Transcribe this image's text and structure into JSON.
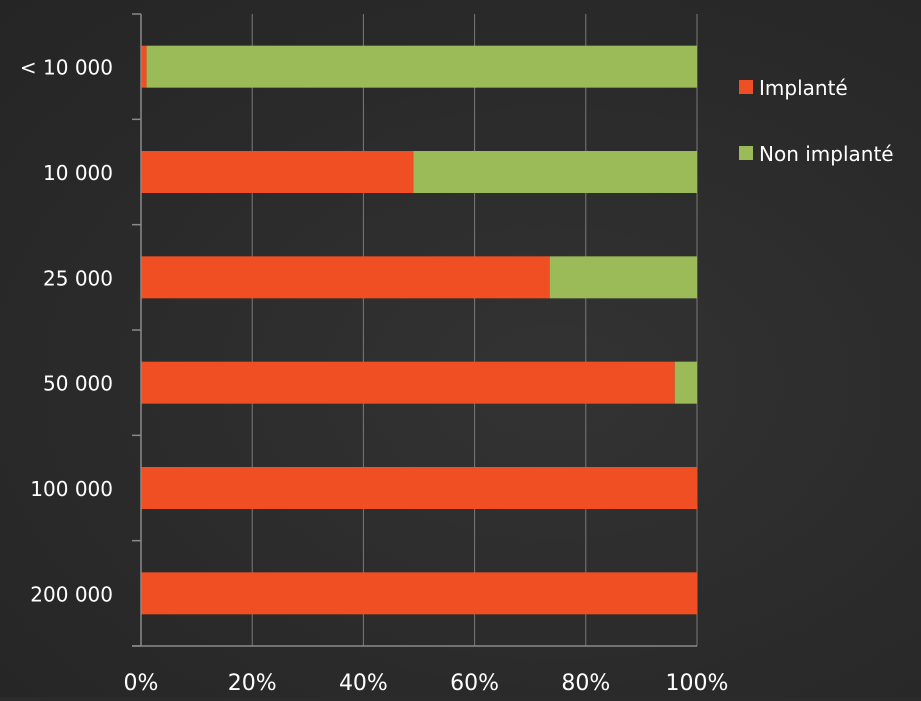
{
  "chart_data": {
    "type": "bar",
    "orientation": "horizontal",
    "stacked": "percent",
    "categories": [
      "< 10 000",
      "10 000",
      "25 000",
      "50 000",
      "100 000",
      "200 000"
    ],
    "series": [
      {
        "name": "Implanté",
        "values": [
          1,
          49,
          73.5,
          96,
          100,
          100
        ]
      },
      {
        "name": "Non implanté",
        "values": [
          99,
          51,
          26.5,
          4,
          0,
          0
        ]
      }
    ],
    "x_ticks": [
      "0%",
      "20%",
      "40%",
      "60%",
      "80%",
      "100%"
    ],
    "xlim": [
      0,
      100
    ],
    "grid": "vertical",
    "legend": "right",
    "title": "",
    "xlabel": "",
    "ylabel": ""
  },
  "colors": {
    "background": "#2b2b2b",
    "implante": "#f04e23",
    "non_implante": "#9bbb59",
    "grid": "#7a7a7a",
    "axis": "#8a8a8a",
    "text": "#ffffff"
  }
}
